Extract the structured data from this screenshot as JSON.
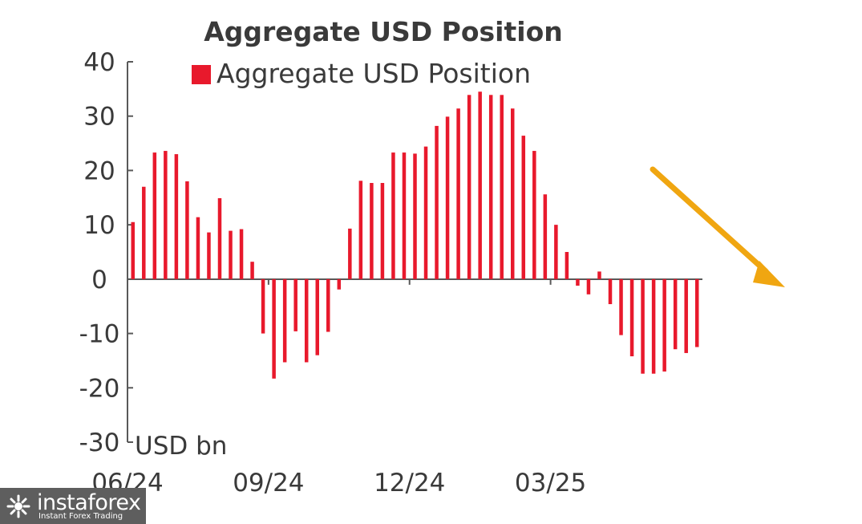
{
  "chart_data": {
    "type": "bar",
    "title": "Aggregate USD Position",
    "legend": {
      "label": "Aggregate USD Position",
      "color": "#e8192c",
      "placement": "top"
    },
    "ylabel": "USD bn",
    "ylim": [
      -30,
      40
    ],
    "yticks": [
      "40",
      "30",
      "20",
      "10",
      "0",
      "-10",
      "-20",
      "-30"
    ],
    "xticks": [
      "06/24",
      "09/24",
      "12/24",
      "03/25"
    ],
    "grid": false,
    "series": [
      {
        "color": "#e8192c",
        "values": [
          10.5,
          17,
          23.3,
          23.6,
          23,
          18,
          11.4,
          8.6,
          14.9,
          8.9,
          9.2,
          3.2,
          -10,
          -18.3,
          -15.3,
          -9.6,
          -15.3,
          -14,
          -9.7,
          -1.9,
          9.3,
          18.1,
          17.7,
          17.7,
          23.3,
          23.3,
          23.1,
          24.4,
          28.2,
          29.9,
          31.4,
          33.9,
          34.5,
          33.9,
          33.9,
          31.4,
          26.4,
          23.6,
          15.6,
          10,
          5,
          -1.2,
          -2.8,
          1.4,
          -4.6,
          -10.3,
          -14.2,
          -17.4,
          -17.4,
          -17,
          -12.9,
          -13.6,
          -12.5
        ]
      }
    ]
  },
  "annotation": {
    "type": "arrow",
    "meaning": "downtrend",
    "color": "#f0a611"
  },
  "watermark": {
    "brand": "instaforex",
    "tagline": "Instant Forex Trading"
  }
}
